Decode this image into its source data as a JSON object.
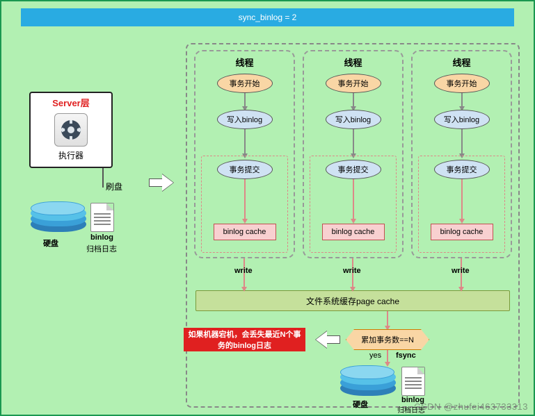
{
  "title": "sync_binlog = 2",
  "server": {
    "title": "Server层",
    "executor": "执行器"
  },
  "brush_label": "刷盘",
  "left_disk": {
    "label": "硬盘",
    "binlog": "binlog",
    "archive": "归档日志"
  },
  "threads": {
    "title": "线程",
    "n1": "事务开始",
    "n2": "写入binlog",
    "n3": "事务提交",
    "n4": "binlog cache",
    "write": "write"
  },
  "page_cache": "文件系统缓存page cache",
  "decision": "累加事务数==N",
  "yes": "yes",
  "fsync": "fsync",
  "warn": "如果机器宕机，会丢失最近N个事务的binlog日志",
  "bottom_disk": {
    "label": "硬盘",
    "binlog": "binlog",
    "archive": "归档日志"
  },
  "watermark": "CSDN @zhufei463733313",
  "colors": {
    "canvas_bg": "#b2f0b2",
    "canvas_border": "#1a9850",
    "topbar": "#29abe2",
    "orange": "#f9d6a5",
    "blue_node": "#cfe2f3",
    "pink": "#f8d0d0",
    "page_cache": "#c5e09b",
    "warn": "#e02020",
    "disk_top": "#56c1e8",
    "disk_mid": "#3aa0d8",
    "disk_bot": "#2d7fb8"
  },
  "thread_x": [
    10,
    166,
    322
  ]
}
